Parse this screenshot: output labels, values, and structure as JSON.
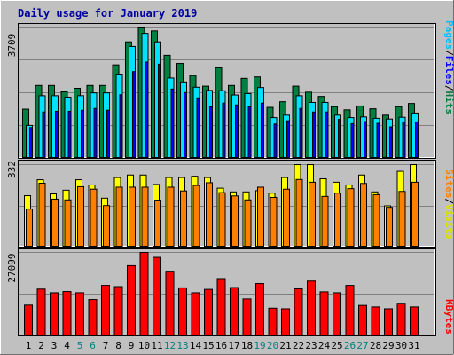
{
  "chart_data": [
    {
      "type": "bar",
      "title": "Daily usage for January 2019",
      "ylabel": "Pages / Files / Hits",
      "ymax_label": "3709",
      "ylim": [
        0,
        3709
      ],
      "categories": [
        "1",
        "2",
        "3",
        "4",
        "5",
        "6",
        "7",
        "8",
        "9",
        "10",
        "11",
        "12",
        "13",
        "14",
        "15",
        "16",
        "17",
        "18",
        "19",
        "20",
        "21",
        "22",
        "23",
        "24",
        "25",
        "26",
        "27",
        "28",
        "29",
        "30",
        "31"
      ],
      "series": [
        {
          "name": "Hits",
          "color": "#008040",
          "values": [
            1390,
            2060,
            2060,
            1880,
            1980,
            2060,
            2060,
            2640,
            3290,
            3709,
            3600,
            2910,
            2680,
            2340,
            2040,
            2560,
            2060,
            2260,
            2300,
            1440,
            1600,
            2040,
            1870,
            1750,
            1460,
            1370,
            1480,
            1400,
            1220,
            1460,
            1550
          ]
        },
        {
          "name": "Files",
          "color": "#00e0ff",
          "values": [
            930,
            1770,
            1770,
            1730,
            1770,
            1850,
            1850,
            2380,
            3160,
            3530,
            3290,
            2270,
            2160,
            2010,
            1920,
            1910,
            1790,
            1830,
            2000,
            1150,
            1220,
            1770,
            1580,
            1580,
            1220,
            1150,
            1170,
            1130,
            1110,
            1160,
            1280
          ]
        },
        {
          "name": "Pages",
          "color": "#0000ff",
          "values": [
            870,
            1310,
            1330,
            1330,
            1360,
            1410,
            1360,
            1800,
            2450,
            2720,
            2660,
            1960,
            1860,
            1710,
            1460,
            1560,
            1510,
            1460,
            1560,
            970,
            1060,
            1410,
            1310,
            1310,
            1100,
            980,
            1040,
            990,
            890,
            1030,
            1030
          ]
        }
      ]
    },
    {
      "type": "bar",
      "ylabel": "Sites / Visits",
      "ymax_label": "332",
      "ylim": [
        0,
        332
      ],
      "categories": [
        "1",
        "2",
        "3",
        "4",
        "5",
        "6",
        "7",
        "8",
        "9",
        "10",
        "11",
        "12",
        "13",
        "14",
        "15",
        "16",
        "17",
        "18",
        "19",
        "20",
        "21",
        "22",
        "23",
        "24",
        "25",
        "26",
        "27",
        "28",
        "29",
        "30",
        "31"
      ],
      "series": [
        {
          "name": "Visits",
          "color": "#ffff00",
          "values": [
            207,
            271,
            214,
            229,
            271,
            250,
            197,
            280,
            290,
            290,
            252,
            280,
            280,
            285,
            280,
            237,
            222,
            222,
            227,
            217,
            280,
            332,
            332,
            275,
            261,
            250,
            290,
            222,
            166,
            305,
            332
          ]
        },
        {
          "name": "Sites",
          "color": "#ff8000",
          "values": [
            153,
            257,
            193,
            190,
            243,
            233,
            167,
            241,
            241,
            241,
            189,
            241,
            226,
            248,
            259,
            219,
            206,
            190,
            241,
            200,
            233,
            272,
            261,
            204,
            217,
            235,
            256,
            211,
            160,
            224,
            261
          ]
        }
      ]
    },
    {
      "type": "bar",
      "ylabel": "KBytes",
      "ymax_label": "27099",
      "ylim": [
        0,
        27099
      ],
      "categories": [
        "1",
        "2",
        "3",
        "4",
        "5",
        "6",
        "7",
        "8",
        "9",
        "10",
        "11",
        "12",
        "13",
        "14",
        "15",
        "16",
        "17",
        "18",
        "19",
        "20",
        "21",
        "22",
        "23",
        "24",
        "25",
        "26",
        "27",
        "28",
        "29",
        "30",
        "31"
      ],
      "weekend_days": [
        "5",
        "6",
        "12",
        "13",
        "19",
        "20",
        "26",
        "27"
      ],
      "series": [
        {
          "name": "KBytes",
          "color": "#ff0000",
          "values": [
            10000,
            15200,
            14000,
            14400,
            14000,
            11800,
            16400,
            16000,
            22800,
            27099,
            25500,
            21000,
            15600,
            14000,
            15100,
            18600,
            15700,
            12000,
            17000,
            9000,
            8800,
            15300,
            17800,
            14300,
            14000,
            16400,
            9900,
            9400,
            8800,
            10600,
            9400
          ]
        }
      ]
    }
  ]
}
